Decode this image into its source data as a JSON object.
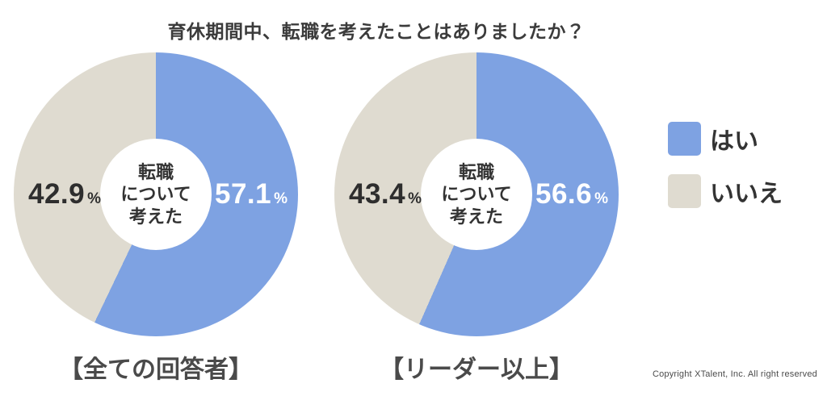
{
  "title": "育休期間中、転職を考えたことはありましたか？",
  "unit": "%",
  "chart_data": [
    {
      "type": "pie",
      "style": "donut",
      "caption": "【全ての回答者】",
      "center_label": [
        "転職",
        "について",
        "考えた"
      ],
      "categories": [
        "はい",
        "いいえ"
      ],
      "values": [
        57.1,
        42.9
      ],
      "labels": [
        "57.1",
        "42.9"
      ],
      "colors": [
        "#7EA2E2",
        "#DFDBD0"
      ],
      "start_angle_deg": 0,
      "direction": "clockwise"
    },
    {
      "type": "pie",
      "style": "donut",
      "caption": "【リーダー以上】",
      "center_label": [
        "転職",
        "について",
        "考えた"
      ],
      "categories": [
        "はい",
        "いいえ"
      ],
      "values": [
        56.6,
        43.4
      ],
      "labels": [
        "56.6",
        "43.4"
      ],
      "colors": [
        "#7EA2E2",
        "#DFDBD0"
      ],
      "start_angle_deg": 0,
      "direction": "clockwise"
    }
  ],
  "legend": {
    "position": "right",
    "items": [
      {
        "label": "はい",
        "color": "#7EA2E2"
      },
      {
        "label": "いいえ",
        "color": "#DFDBD0"
      }
    ]
  },
  "footer": {
    "copyright": "Copyright XTalent, Inc. All right reserved"
  }
}
